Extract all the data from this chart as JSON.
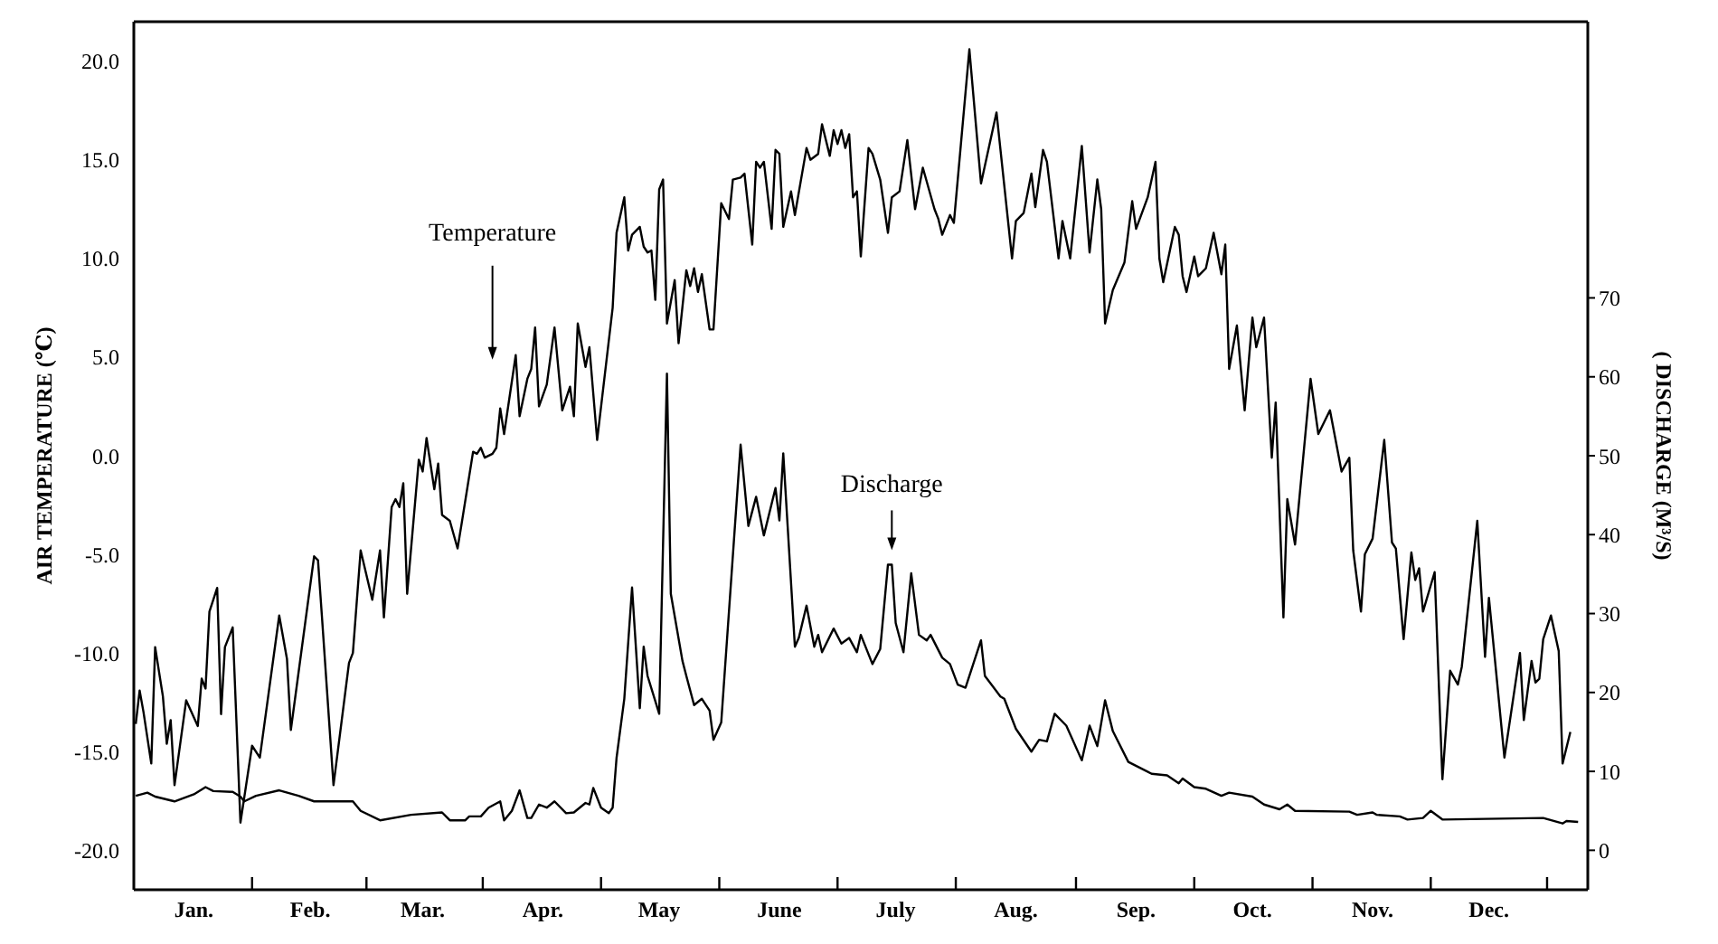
{
  "chart_data": {
    "type": "line",
    "ylabel": "AIR TEMPERATURE (℃)",
    "y2label": "( DISCHARGE (M³/S)",
    "marker": "none",
    "line_style": "solid",
    "categories": [
      null,
      null,
      null,
      null,
      null,
      null,
      null,
      null,
      null,
      null,
      null,
      null,
      null,
      null,
      null,
      "Jan.",
      null,
      null,
      null,
      null,
      null,
      null,
      null,
      null,
      null,
      null,
      null,
      null,
      null,
      null,
      null,
      null,
      null,
      null,
      null,
      null,
      null,
      null,
      null,
      null,
      null,
      null,
      null,
      null,
      null,
      "Feb.",
      null,
      null,
      null,
      null,
      null,
      null,
      null,
      null,
      null,
      null,
      null,
      null,
      null,
      null,
      null,
      null,
      null,
      null,
      null,
      null,
      null,
      null,
      null,
      null,
      null,
      null,
      null,
      null,
      "Mar.",
      null,
      null,
      null,
      null,
      null,
      null,
      null,
      null,
      null,
      null,
      null,
      null,
      null,
      null,
      null,
      null,
      null,
      null,
      null,
      null,
      null,
      null,
      null,
      null,
      null,
      null,
      null,
      null,
      null,
      null,
      "Apr.",
      null,
      null,
      null,
      null,
      null,
      null,
      null,
      null,
      null,
      null,
      null,
      null,
      null,
      null,
      null,
      null,
      null,
      null,
      null,
      null,
      null,
      null,
      null,
      null,
      null,
      null,
      null,
      null,
      null,
      "May",
      null,
      null,
      null,
      null,
      null,
      null,
      null,
      null,
      null,
      null,
      null,
      null,
      null,
      null,
      null,
      null,
      null,
      null,
      null,
      null,
      null,
      null,
      null,
      null,
      null,
      null,
      null,
      null,
      null,
      null,
      "June",
      null,
      null,
      null,
      null,
      null,
      null,
      null,
      null,
      null,
      null,
      null,
      null,
      null,
      null,
      null,
      null,
      null,
      null,
      null,
      null,
      null,
      null,
      null,
      null,
      null,
      null,
      null,
      null,
      null,
      "July",
      null,
      null,
      null,
      null,
      null,
      null,
      null,
      null,
      null,
      null,
      null,
      null,
      null,
      null,
      null,
      null,
      null,
      null,
      null,
      null,
      null,
      null,
      null,
      null,
      null,
      null,
      null,
      null,
      null,
      null,
      "Aug.",
      null,
      null,
      null,
      null,
      null,
      null,
      null,
      null,
      null,
      null,
      null,
      null,
      null,
      null,
      null,
      null,
      null,
      null,
      null,
      null,
      null,
      null,
      null,
      null,
      null,
      null,
      null,
      null,
      null,
      null,
      "Sep.",
      null,
      null,
      null,
      null,
      null,
      null,
      null,
      null,
      null,
      null,
      null,
      null,
      null,
      null,
      null,
      null,
      null,
      null,
      null,
      null,
      null,
      null,
      null,
      null,
      null,
      null,
      null,
      null,
      null,
      "Oct.",
      null,
      null,
      null,
      null,
      null,
      null,
      null,
      null,
      null,
      null,
      null,
      null,
      null,
      null,
      null,
      null,
      null,
      null,
      null,
      null,
      null,
      null,
      null,
      null,
      null,
      null,
      null,
      null,
      null,
      null,
      "Nov.",
      null,
      null,
      null,
      null,
      null,
      null,
      null,
      null,
      null,
      null,
      null,
      null,
      null,
      null,
      null,
      null,
      null,
      null,
      null,
      null,
      null,
      null,
      null,
      null,
      null,
      null,
      null,
      null,
      null,
      "Dec.",
      null,
      null,
      null,
      null,
      null,
      null,
      null,
      null,
      null,
      null,
      null,
      null,
      null,
      null,
      null,
      null,
      null,
      null,
      null,
      null,
      null,
      null,
      null,
      null,
      null
    ],
    "ylim": [
      -22,
      22
    ],
    "yticks": [
      {
        "value": -20,
        "label": "-20.0"
      },
      {
        "value": -15,
        "label": "-15.0"
      },
      {
        "value": -10,
        "label": "-10.0"
      },
      {
        "value": -5,
        "label": "-5.0"
      },
      {
        "value": 0,
        "label": "0.0"
      },
      {
        "value": 5,
        "label": "5.0"
      },
      {
        "value": 10,
        "label": "10.0"
      },
      {
        "value": 15,
        "label": "15.0"
      },
      {
        "value": 20,
        "label": "20.0"
      }
    ],
    "y2lim": [
      -5,
      105
    ],
    "y2ticks": [
      0,
      10,
      20,
      30,
      40,
      50,
      60,
      70
    ],
    "series": [
      {
        "name": "Temperature",
        "color": "#000000",
        "values": [
          -13.6,
          -11.9,
          -13.0,
          null,
          -15.6,
          -9.7,
          null,
          -12.2,
          -14.6,
          -13.4,
          -16.7,
          null,
          null,
          -12.4,
          null,
          null,
          -13.7,
          -11.3,
          -11.8,
          -7.9,
          null,
          -6.7,
          -13.1,
          -9.7,
          null,
          -8.7,
          null,
          -18.6,
          null,
          null,
          -14.7,
          null,
          -15.3,
          null,
          null,
          null,
          null,
          -8.1,
          null,
          -10.3,
          -13.9,
          null,
          null,
          null,
          null,
          null,
          -5.1,
          -5.3,
          -8.1,
          null,
          null,
          -16.7,
          null,
          null,
          null,
          -10.5,
          -10.0,
          null,
          -4.8,
          null,
          null,
          -7.3,
          null,
          -4.8,
          -8.2,
          null,
          -2.6,
          -2.2,
          -2.6,
          -1.4,
          -7.0,
          null,
          null,
          -0.2,
          -0.8,
          0.9,
          null,
          -1.7,
          -0.4,
          -3.0,
          null,
          -3.3,
          null,
          -4.7,
          -3.5,
          null,
          null,
          0.2,
          0.1,
          0.4,
          -0.1,
          null,
          0.1,
          0.4,
          2.4,
          1.1,
          null,
          null,
          5.1,
          2.0,
          null,
          3.9,
          4.4,
          6.5,
          2.5,
          null,
          3.6,
          null,
          6.5,
          null,
          2.3,
          null,
          3.5,
          2.0,
          6.7,
          null,
          4.5,
          5.5,
          null,
          0.8,
          null,
          null,
          null,
          7.5,
          11.3,
          null,
          13.1,
          10.4,
          11.2,
          null,
          11.6,
          10.6,
          10.3,
          10.4,
          7.9,
          13.5,
          14.0,
          6.7,
          null,
          8.9,
          5.7,
          null,
          9.4,
          8.6,
          9.5,
          8.3,
          9.2,
          null,
          6.4,
          6.4,
          null,
          12.8,
          null,
          12.0,
          14.0,
          null,
          14.1,
          14.3,
          null,
          10.7,
          14.9,
          14.6,
          14.9,
          null,
          11.5,
          15.5,
          15.3,
          11.6,
          null,
          13.4,
          12.2,
          null,
          null,
          15.6,
          15.0,
          null,
          15.3,
          16.8,
          null,
          15.2,
          16.5,
          15.8,
          16.5,
          15.6,
          16.3,
          13.1,
          13.4,
          10.1,
          null,
          15.6,
          15.3,
          null,
          14.0,
          null,
          11.3,
          13.1,
          null,
          13.4,
          null,
          16.0,
          null,
          12.5,
          null,
          14.6,
          null,
          null,
          12.5,
          12.0,
          11.2,
          null,
          12.2,
          11.8,
          null,
          null,
          null,
          20.6,
          null,
          null,
          13.8,
          null,
          null,
          null,
          17.4,
          null,
          null,
          null,
          10.0,
          11.9,
          null,
          12.3,
          null,
          14.3,
          12.6,
          null,
          15.5,
          14.9,
          null,
          null,
          10.0,
          11.9,
          null,
          10.0,
          null,
          null,
          15.7,
          null,
          10.3,
          null,
          14.0,
          12.5,
          6.7,
          null,
          8.4,
          null,
          null,
          9.8,
          null,
          12.9,
          11.5,
          null,
          null,
          13.1,
          null,
          14.9,
          10.0,
          8.8,
          null,
          null,
          11.6,
          11.2,
          9.1,
          8.3,
          null,
          10.1,
          9.1,
          null,
          9.5,
          null,
          11.3,
          null,
          9.2,
          10.7,
          4.4,
          null,
          6.6,
          null,
          2.3,
          null,
          7.0,
          5.5,
          null,
          7.0,
          null,
          -0.1,
          2.7,
          null,
          -8.2,
          -2.2,
          null,
          -4.5,
          null,
          null,
          null,
          3.9,
          null,
          1.1,
          null,
          null,
          2.3,
          null,
          null,
          -0.8,
          null,
          -0.1,
          -4.8,
          null,
          -7.9,
          -5.0,
          null,
          -4.2,
          null,
          null,
          0.8,
          null,
          -4.4,
          -4.7,
          null,
          -9.3,
          null,
          -4.9,
          -6.3,
          -5.7,
          -7.9,
          null,
          null,
          -5.9,
          null,
          -16.4,
          null,
          -10.9,
          null,
          -11.6,
          -10.7,
          null,
          null,
          null,
          -3.3,
          null,
          -10.2,
          -7.2,
          null,
          null,
          null,
          -15.3,
          null,
          null,
          null,
          -10.0,
          -13.4,
          null,
          -10.4,
          -11.5,
          -11.3,
          -9.3,
          null,
          -8.1,
          null,
          -9.9,
          -15.6,
          null,
          -14.0,
          null,
          null,
          null,
          null
        ]
      },
      {
        "name": "Discharge",
        "color": "#000000",
        "axis": "y2",
        "values": [
          6.9,
          null,
          null,
          7.3,
          null,
          6.8,
          null,
          null,
          null,
          null,
          6.2,
          null,
          null,
          null,
          null,
          7.1,
          null,
          null,
          8.0,
          null,
          7.5,
          null,
          null,
          null,
          null,
          7.4,
          null,
          6.8,
          6.2,
          null,
          null,
          6.9,
          null,
          null,
          null,
          null,
          null,
          7.6,
          null,
          null,
          null,
          null,
          6.9,
          null,
          null,
          null,
          6.2,
          null,
          null,
          null,
          null,
          null,
          null,
          null,
          null,
          null,
          6.2,
          null,
          5.0,
          null,
          null,
          null,
          null,
          3.8,
          null,
          null,
          null,
          null,
          null,
          null,
          null,
          4.5,
          null,
          null,
          null,
          null,
          null,
          null,
          null,
          4.8,
          null,
          3.8,
          null,
          null,
          null,
          3.8,
          4.3,
          null,
          null,
          4.3,
          null,
          5.4,
          null,
          null,
          6.2,
          3.8,
          null,
          5.0,
          null,
          7.6,
          null,
          4.1,
          4.1,
          null,
          5.8,
          null,
          5.4,
          null,
          6.2,
          null,
          null,
          4.7,
          null,
          4.8,
          null,
          null,
          6.0,
          5.8,
          7.9,
          null,
          5.4,
          null,
          4.7,
          5.4,
          11.7,
          null,
          19.2,
          null,
          33.3,
          null,
          18.0,
          25.8,
          22.1,
          null,
          null,
          17.3,
          null,
          60.4,
          32.5,
          null,
          null,
          24.0,
          22.1,
          null,
          18.4,
          18.8,
          19.2,
          null,
          17.7,
          14.0,
          null,
          16.2,
          null,
          null,
          null,
          null,
          51.4,
          null,
          41.1,
          null,
          44.8,
          null,
          39.9,
          null,
          null,
          45.9,
          41.8,
          50.3,
          null,
          null,
          25.8,
          26.9,
          null,
          31.0,
          null,
          25.8,
          27.3,
          25.1,
          null,
          null,
          28.1,
          null,
          26.2,
          null,
          26.9,
          null,
          25.1,
          27.3,
          null,
          null,
          23.6,
          null,
          25.5,
          null,
          36.2,
          36.2,
          28.8,
          null,
          25.1,
          null,
          35.1,
          null,
          27.3,
          null,
          26.6,
          27.3,
          null,
          null,
          24.4,
          null,
          23.6,
          null,
          21.0,
          null,
          20.6,
          null,
          null,
          null,
          26.6,
          22.1,
          null,
          null,
          null,
          19.5,
          19.2,
          null,
          null,
          15.4,
          null,
          null,
          null,
          12.5,
          null,
          14.0,
          null,
          13.8,
          null,
          17.3,
          null,
          null,
          15.8,
          null,
          null,
          null,
          11.4,
          null,
          15.8,
          null,
          13.2,
          null,
          19.0,
          null,
          15.1,
          null,
          null,
          null,
          11.2,
          null,
          null,
          null,
          null,
          null,
          9.7,
          null,
          null,
          null,
          9.5,
          null,
          null,
          8.5,
          9.1,
          null,
          null,
          8.0,
          null,
          null,
          7.8,
          null,
          null,
          null,
          6.9,
          null,
          7.3,
          null,
          null,
          null,
          null,
          null,
          6.8,
          null,
          null,
          5.8,
          null,
          null,
          null,
          5.2,
          null,
          5.8,
          null,
          5.0,
          null,
          null,
          null,
          null,
          null,
          null,
          null,
          null,
          null,
          null,
          null,
          null,
          null,
          4.9,
          null,
          4.5,
          null,
          null,
          null,
          4.8,
          4.5,
          null,
          null,
          null,
          null,
          null,
          4.3,
          null,
          3.9,
          null,
          null,
          null,
          4.1,
          null,
          5.0,
          null,
          null,
          3.9,
          null,
          null,
          null,
          null,
          null,
          null,
          null,
          null,
          null,
          null,
          null,
          null,
          null,
          null,
          null,
          null,
          null,
          null,
          null,
          null,
          null,
          null,
          null,
          null,
          null,
          4.1,
          null,
          null,
          null,
          null,
          3.4,
          3.7,
          null,
          null,
          3.6,
          null,
          null
        ]
      }
    ]
  }
}
